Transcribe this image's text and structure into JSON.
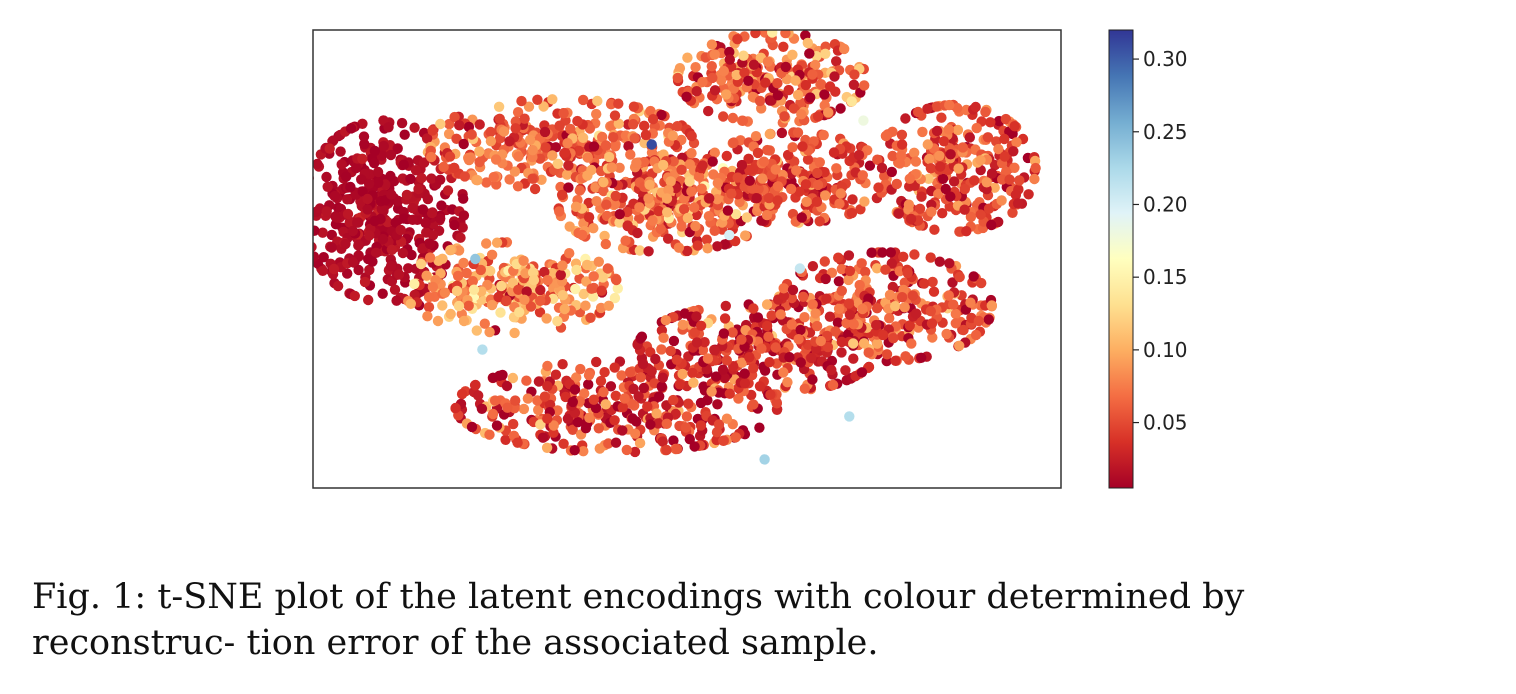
{
  "caption": {
    "label": "Fig. 1:",
    "text": "t-SNE plot of the latent encodings with colour determined by reconstruc- tion error of the associated sample."
  },
  "chart_data": {
    "type": "scatter",
    "title": "",
    "xlabel": "",
    "ylabel": "",
    "xticks_labels_shown": false,
    "yticks_labels_shown": false,
    "grid": false,
    "colorbar": {
      "colormap": "RdYlBu",
      "range": [
        0.005,
        0.32
      ],
      "ticks": [
        0.05,
        0.1,
        0.15,
        0.2,
        0.25,
        0.3
      ],
      "tick_labels": [
        "0.05",
        "0.10",
        "0.15",
        "0.20",
        "0.25",
        "0.30"
      ]
    },
    "clusters": [
      {
        "center": [
          -38,
          10
        ],
        "spread": [
          6,
          10
        ],
        "n": 420,
        "error_mean": 0.012,
        "error_sd": 0.006
      },
      {
        "center": [
          -13,
          24
        ],
        "spread": [
          10,
          5
        ],
        "n": 330,
        "error_mean": 0.06,
        "error_sd": 0.025
      },
      {
        "center": [
          2,
          11
        ],
        "spread": [
          8,
          5
        ],
        "n": 300,
        "error_mean": 0.07,
        "error_sd": 0.03
      },
      {
        "center": [
          -20,
          -6
        ],
        "spread": [
          8,
          5
        ],
        "n": 270,
        "error_mean": 0.085,
        "error_sd": 0.035
      },
      {
        "center": [
          17,
          38
        ],
        "spread": [
          7,
          5
        ],
        "n": 260,
        "error_mean": 0.06,
        "error_sd": 0.03
      },
      {
        "center": [
          20,
          17
        ],
        "spread": [
          7,
          5
        ],
        "n": 260,
        "error_mean": 0.05,
        "error_sd": 0.025
      },
      {
        "center": [
          43,
          19
        ],
        "spread": [
          6,
          7
        ],
        "n": 280,
        "error_mean": 0.05,
        "error_sd": 0.025
      },
      {
        "center": [
          -5,
          -31
        ],
        "spread": [
          12,
          5
        ],
        "n": 330,
        "error_mean": 0.04,
        "error_sd": 0.03
      },
      {
        "center": [
          15,
          -19
        ],
        "spread": [
          9,
          5
        ],
        "n": 300,
        "error_mean": 0.04,
        "error_sd": 0.03
      },
      {
        "center": [
          33,
          -10
        ],
        "spread": [
          8,
          6
        ],
        "n": 280,
        "error_mean": 0.05,
        "error_sd": 0.03
      }
    ],
    "outliers": [
      {
        "x": 0,
        "y": 24,
        "value": 0.31
      },
      {
        "x": -25,
        "y": 0,
        "value": 0.24
      },
      {
        "x": -24,
        "y": -19,
        "value": 0.22
      },
      {
        "x": 16,
        "y": -42,
        "value": 0.23
      },
      {
        "x": 28,
        "y": -33,
        "value": 0.22
      },
      {
        "x": 21,
        "y": -2,
        "value": 0.21
      },
      {
        "x": 30,
        "y": 29,
        "value": 0.18
      },
      {
        "x": 11,
        "y": 5,
        "value": 0.2
      }
    ],
    "xlim": [
      -48,
      58
    ],
    "ylim": [
      -48,
      48
    ]
  }
}
